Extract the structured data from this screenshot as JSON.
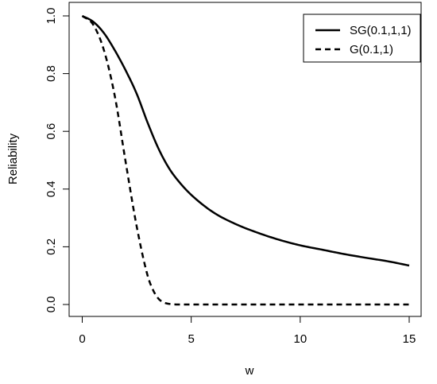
{
  "chart_data": {
    "type": "line",
    "title": "",
    "xlabel": "w",
    "ylabel": "Reliability",
    "xlim": [
      0,
      15
    ],
    "ylim": [
      0,
      1
    ],
    "xticks": [
      0,
      5,
      10,
      15
    ],
    "yticks": [
      0.0,
      0.2,
      0.4,
      0.6,
      0.8,
      1.0
    ],
    "xtick_labels": [
      "0",
      "5",
      "10",
      "15"
    ],
    "ytick_labels": [
      "0.0",
      "0.2",
      "0.4",
      "0.6",
      "0.8",
      "1.0"
    ],
    "grid": false,
    "legend_position": "top-right",
    "series": [
      {
        "name": "SG(0.1,1,1)",
        "line_style": "solid",
        "color": "#000000",
        "x": [
          0,
          0.5,
          1,
          1.5,
          2,
          2.5,
          3,
          3.5,
          4,
          4.5,
          5,
          6,
          7,
          8,
          9,
          10,
          11,
          12,
          13,
          14,
          15
        ],
        "y": [
          1.0,
          0.98,
          0.94,
          0.88,
          0.81,
          0.73,
          0.63,
          0.54,
          0.47,
          0.42,
          0.38,
          0.32,
          0.28,
          0.25,
          0.225,
          0.205,
          0.19,
          0.175,
          0.162,
          0.15,
          0.135
        ]
      },
      {
        "name": "G(0.1,1)",
        "line_style": "dashed",
        "color": "#000000",
        "x": [
          0,
          0.5,
          1,
          1.5,
          2,
          2.5,
          3,
          3.25,
          3.5,
          3.75,
          4,
          4.5,
          5,
          6,
          8,
          10,
          12,
          15
        ],
        "y": [
          1.0,
          0.97,
          0.88,
          0.72,
          0.49,
          0.27,
          0.1,
          0.05,
          0.02,
          0.007,
          0.002,
          0.0,
          0.0,
          0.0,
          0.0,
          0.0,
          0.0,
          0.0
        ]
      }
    ]
  }
}
